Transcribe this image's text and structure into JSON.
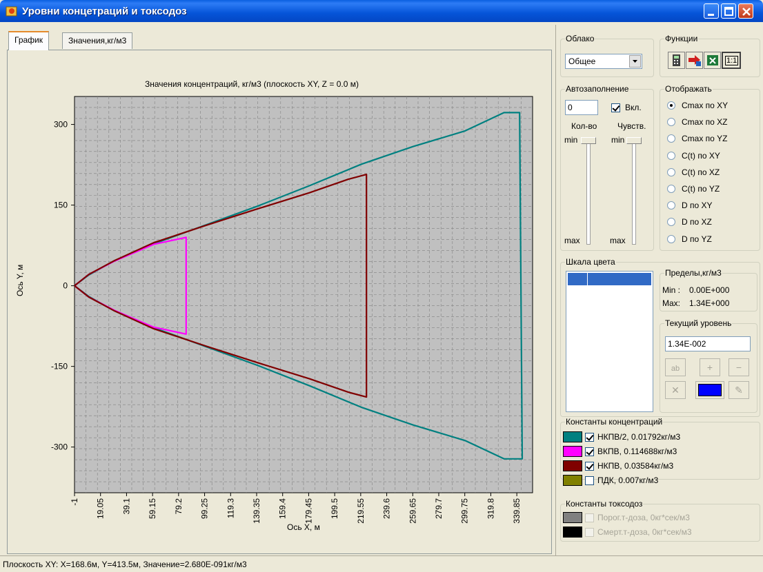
{
  "window": {
    "title": "Уровни концетраций и токсодоз"
  },
  "tabs": [
    {
      "label": "График",
      "active": true
    },
    {
      "label": "Значения,кг/м3",
      "active": false
    }
  ],
  "chart_data": {
    "type": "line",
    "title": "Значения концентраций, кг/м3 (плоскость XY, Z = 0.0 м)",
    "xlabel": "Ось X, м",
    "ylabel": "Ось Y, м",
    "xlim": [
      -1,
      352
    ],
    "ylim": [
      -385,
      352
    ],
    "x_ticks": [
      "-1",
      "19.05",
      "39.1",
      "59.15",
      "79.2",
      "99.25",
      "119.3",
      "139.35",
      "159.4",
      "179.45",
      "199.5",
      "219.55",
      "239.6",
      "259.65",
      "279.7",
      "299.75",
      "319.8",
      "339.85"
    ],
    "y_ticks": [
      300,
      150,
      0,
      -150,
      -300
    ],
    "grid": true,
    "series": [
      {
        "name": "НКПВ/2, 0.01792кг/м3",
        "color": "#008080",
        "x": [
          -1,
          10,
          30,
          60,
          100,
          140,
          180,
          220,
          260,
          300,
          330,
          342,
          344,
          342,
          330,
          300,
          260,
          220,
          180,
          140,
          100,
          60,
          30,
          10,
          -1
        ],
        "y": [
          0,
          20,
          47,
          78,
          113,
          148,
          186,
          226,
          259,
          288,
          322,
          322,
          -322,
          -322,
          -322,
          -288,
          -259,
          -226,
          -186,
          -148,
          -113,
          -78,
          -47,
          -20,
          0
        ]
      },
      {
        "name": "ВКПВ, 0.114688кг/м3",
        "color": "#ff00ff",
        "x": [
          -1,
          10,
          30,
          60,
          85,
          85,
          85,
          60,
          30,
          10,
          -1
        ],
        "y": [
          0,
          21,
          46,
          77,
          90,
          0,
          -90,
          -77,
          -46,
          -21,
          0
        ]
      },
      {
        "name": "НКПВ, 0.03584кг/м3",
        "color": "#800000",
        "x": [
          -1,
          10,
          30,
          60,
          100,
          140,
          180,
          210,
          224,
          224,
          224,
          210,
          180,
          140,
          100,
          60,
          30,
          10,
          -1
        ],
        "y": [
          0,
          21,
          47,
          80,
          112,
          143,
          173,
          198,
          207,
          0,
          -207,
          -198,
          -173,
          -143,
          -112,
          -80,
          -47,
          -21,
          0
        ]
      }
    ]
  },
  "panel": {
    "cloud": {
      "legend": "Облако",
      "value": "Общее"
    },
    "functions": {
      "legend": "Функции",
      "btn_11_label": "1:1"
    },
    "autofill": {
      "legend": "Автозаполнение",
      "count_value": "0",
      "enabled_label": "Вкл.",
      "enabled": true,
      "qty_label": "Кол-во",
      "sens_label": "Чувств.",
      "min_label": "min",
      "max_label": "max"
    },
    "display": {
      "legend": "Отображать",
      "options": [
        "Cmax по XY",
        "Cmax по XZ",
        "Cmax по YZ",
        "C(t) по XY",
        "C(t) по XZ",
        "C(t) по YZ",
        "D по XY",
        "D по XZ",
        "D по YZ"
      ],
      "selected": 0
    },
    "color_scale": {
      "legend": "Шкала цвета",
      "selected_color": "#316ac5"
    },
    "limits": {
      "legend": "Пределы,кг/м3",
      "min_label": "Min :",
      "min_value": "0.00E+000",
      "max_label": "Max:",
      "max_value": "1.34E+000"
    },
    "current_level": {
      "legend": "Текущий уровень",
      "value": "1.34E-002",
      "color": "#0000ff"
    },
    "conc_constants": {
      "legend": "Константы концентраций",
      "items": [
        {
          "label": "НКПВ/2, 0.01792кг/м3",
          "color": "#008080",
          "checked": true
        },
        {
          "label": "ВКПВ, 0.114688кг/м3",
          "color": "#ff00ff",
          "checked": true
        },
        {
          "label": "НКПВ, 0.03584кг/м3",
          "color": "#800000",
          "checked": true
        },
        {
          "label": "ПДК, 0.007кг/м3",
          "color": "#808000",
          "checked": false
        }
      ]
    },
    "tox_constants": {
      "legend": "Константы токсодоз",
      "items": [
        {
          "label": "Порог.т-доза, 0кг*сек/м3",
          "color": "#808080",
          "checked": false
        },
        {
          "label": "Смерт.т-доза, 0кг*сек/м3",
          "color": "#000000",
          "checked": false
        }
      ]
    }
  },
  "status": {
    "text": "Плоскость XY: X=168.6м, Y=413.5м, Значение=2.680E-091кг/м3"
  }
}
